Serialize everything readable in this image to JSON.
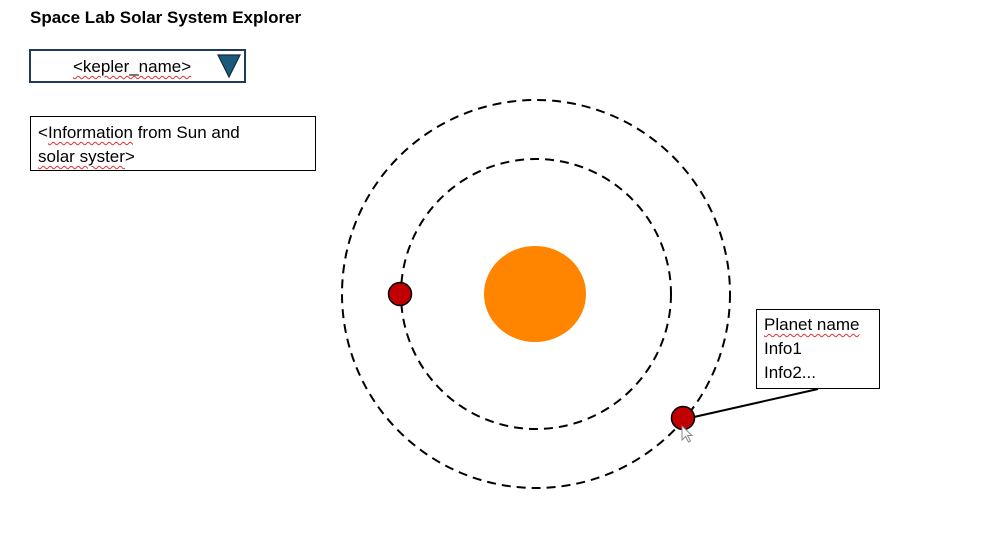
{
  "app": {
    "title": "Space Lab Solar System Explorer"
  },
  "dropdown": {
    "selected": "<kepler_name>",
    "icon": "triangle-down-icon",
    "icon_color": "#1a5a7a"
  },
  "info": {
    "line1_prefix": "<",
    "line1_word": "Information",
    "line1_rest": " from Sun and",
    "line2_word": "solar syster",
    "line2_rest": ">"
  },
  "scene": {
    "star_color": "#ff8400",
    "planet_color": "#c00000",
    "orbit_style": "dashed"
  },
  "tooltip": {
    "name": "Planet name",
    "info1": "Info1",
    "info2": "Info2..."
  }
}
